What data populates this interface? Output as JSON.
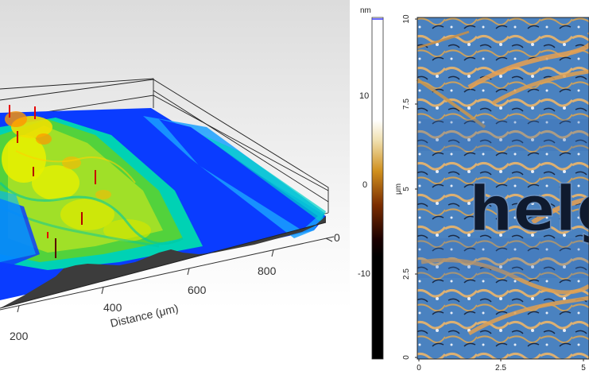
{
  "chart_data": [
    {
      "type": "surface3d",
      "title": "",
      "xlabel": "Distance (μm)",
      "x_ticks": [
        "200",
        "400",
        "600",
        "800",
        "0"
      ],
      "colormap": [
        "#0a3cff",
        "#00b4ff",
        "#00e6b4",
        "#7ddc28",
        "#e6f000",
        "#ff9600",
        "#e60000"
      ],
      "grid": true
    },
    {
      "type": "heatmap",
      "title": "",
      "colorbar_unit": "nm",
      "colorbar_ticks": [
        "10",
        "0",
        "-10"
      ],
      "y_axis_label": "μm",
      "y_ticks": [
        "10",
        "7.5",
        "5",
        "2.5",
        "0"
      ],
      "x_ticks": [
        "0",
        "2.5",
        "5"
      ],
      "image_text": "helg",
      "colormap": [
        "#000000",
        "#6a2200",
        "#c05a10",
        "#e0b060",
        "#ffffff"
      ]
    }
  ]
}
